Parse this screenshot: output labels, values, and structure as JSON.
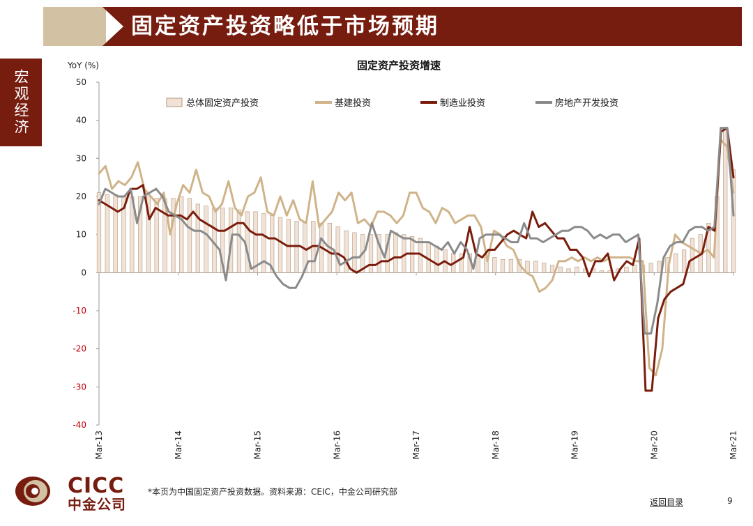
{
  "header": {
    "title": "固定资产投资略低于市场预期",
    "section_tab": "宏观经济"
  },
  "footer": {
    "logo_en": "CICC",
    "logo_cn": "中金公司",
    "note": "*本页为中国固定资产投资数据。资料来源：CEIC，中金公司研究部",
    "back_link": "返回目录",
    "page_number": "9"
  },
  "colors": {
    "brand_red": "#761d10",
    "infra": "#cfb389",
    "manufacturing": "#7a1c0c",
    "realestate": "#8a8a8a",
    "total_fill": "#f1e2d8",
    "total_border": "#b49678",
    "negative_tick": "#c0000b"
  },
  "chart_data": {
    "type": "line",
    "title": "固定资产投资增速",
    "ylabel": "YoY (%)",
    "ylim": [
      -40,
      50
    ],
    "yticks": [
      50,
      40,
      30,
      20,
      10,
      0,
      -10,
      -20,
      -30,
      -40
    ],
    "x_start": "Mar-13",
    "x_labels": [
      "Mar-13",
      "Mar-14",
      "Mar-15",
      "Mar-16",
      "Mar-17",
      "Mar-18",
      "Mar-19",
      "Mar-20",
      "Mar-21"
    ],
    "legend_position": "top",
    "series": [
      {
        "name": "总体固定资产投资",
        "kind": "bar",
        "values": [
          21,
          20.5,
          20.5,
          20,
          20,
          20,
          20,
          19.5,
          19.5,
          19.5,
          20,
          19.5,
          18,
          17.5,
          17,
          17,
          17,
          16.5,
          16,
          16,
          15.5,
          15,
          14.5,
          14,
          13.5,
          13.5,
          13.5,
          13,
          13,
          12,
          11,
          10.5,
          10,
          10,
          10,
          10,
          10.5,
          10,
          9.5,
          9,
          8,
          7,
          6,
          5,
          5,
          5,
          4.5,
          4,
          4,
          3.5,
          3.5,
          3.5,
          3,
          3,
          2.5,
          2,
          1.5,
          1,
          1.5,
          1,
          1,
          0.5,
          0.5,
          1,
          1.5,
          2,
          2,
          2.5,
          3,
          4,
          5,
          6,
          9,
          10,
          13,
          20,
          38,
          27
        ]
      },
      {
        "name": "基建投资",
        "kind": "line",
        "values": [
          26,
          28,
          22,
          24,
          23,
          25,
          29,
          22,
          20,
          18,
          21,
          10,
          18,
          23,
          21,
          27,
          21,
          20,
          16,
          18,
          24,
          17,
          15,
          20,
          21,
          25,
          16,
          15,
          20,
          15,
          19,
          14,
          13,
          24,
          12,
          14,
          16,
          21,
          19,
          21,
          13,
          14,
          12,
          16,
          16,
          15,
          13,
          15,
          21,
          21,
          17,
          16,
          13,
          17,
          16,
          13,
          14,
          15,
          15,
          12,
          3,
          11,
          10,
          7,
          6,
          2,
          0,
          -1,
          -5,
          -4,
          -2,
          3,
          3,
          4,
          3,
          4,
          3,
          4,
          3,
          4,
          4,
          4,
          4,
          3,
          3,
          -25,
          -27,
          -20,
          2,
          10,
          8,
          7,
          6,
          5,
          6,
          4,
          35,
          33,
          21
        ]
      },
      {
        "name": "制造业投资",
        "kind": "line",
        "values": [
          19,
          18,
          17,
          16,
          17,
          22,
          22,
          23,
          14,
          17,
          16,
          15,
          15,
          15,
          14,
          16,
          14,
          13,
          12,
          11,
          11,
          12,
          13,
          13,
          11,
          10,
          10,
          9,
          9,
          8,
          7,
          7,
          7,
          6,
          7,
          7,
          6,
          5,
          5,
          4,
          1,
          0,
          1,
          2,
          2,
          3,
          3,
          4,
          4,
          5,
          5,
          5,
          4,
          3,
          2,
          3,
          2,
          3,
          4,
          12,
          5,
          4,
          6,
          6,
          8,
          10,
          11,
          10,
          9,
          16,
          12,
          13,
          11,
          9,
          9,
          6,
          6,
          4,
          -1,
          3,
          3,
          5,
          -2,
          1,
          3,
          2,
          9,
          -31,
          -31,
          -12,
          -7,
          -5,
          -4,
          -3,
          3,
          4,
          5,
          12,
          11,
          37,
          38,
          25
        ]
      },
      {
        "name": "房地产开发投资",
        "kind": "line",
        "values": [
          18,
          22,
          21,
          20,
          20,
          22,
          13,
          20,
          21,
          22,
          20,
          16,
          15,
          14,
          12,
          11,
          11,
          10,
          8,
          6,
          -2,
          10,
          10,
          8,
          1,
          2,
          3,
          2,
          -1,
          -3,
          -4,
          -4,
          -1,
          3,
          3,
          9,
          7,
          6,
          2,
          3,
          4,
          4,
          6,
          13,
          8,
          4,
          11,
          10,
          9,
          9,
          8,
          8,
          8,
          7,
          6,
          8,
          5,
          8,
          6,
          1,
          9,
          10,
          10,
          10,
          9,
          8,
          8,
          13,
          9,
          9,
          8,
          9,
          10,
          11,
          11,
          12,
          12,
          11,
          9,
          10,
          9,
          10,
          10,
          8,
          9,
          10,
          -16,
          -16,
          -8,
          4,
          7,
          8,
          8,
          11,
          12,
          12,
          11,
          12,
          38,
          38,
          15
        ]
      }
    ]
  }
}
